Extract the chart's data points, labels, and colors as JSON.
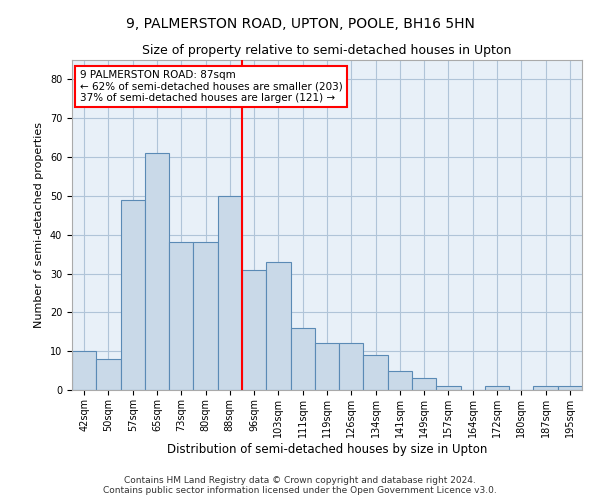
{
  "title1": "9, PALMERSTON ROAD, UPTON, POOLE, BH16 5HN",
  "title2": "Size of property relative to semi-detached houses in Upton",
  "xlabel": "Distribution of semi-detached houses by size in Upton",
  "ylabel": "Number of semi-detached properties",
  "categories": [
    "42sqm",
    "50sqm",
    "57sqm",
    "65sqm",
    "73sqm",
    "80sqm",
    "88sqm",
    "96sqm",
    "103sqm",
    "111sqm",
    "119sqm",
    "126sqm",
    "134sqm",
    "141sqm",
    "149sqm",
    "157sqm",
    "164sqm",
    "172sqm",
    "180sqm",
    "187sqm",
    "195sqm"
  ],
  "values": [
    10,
    8,
    49,
    61,
    38,
    38,
    50,
    31,
    33,
    16,
    12,
    12,
    9,
    5,
    3,
    1,
    0,
    1,
    0,
    1,
    1
  ],
  "bar_color": "#c9d9e8",
  "bar_edge_color": "#5a8ab5",
  "annotation_text": "9 PALMERSTON ROAD: 87sqm\n← 62% of semi-detached houses are smaller (203)\n37% of semi-detached houses are larger (121) →",
  "annotation_box_color": "white",
  "annotation_box_edge_color": "red",
  "vline_color": "red",
  "vline_x_index": 6,
  "ylim": [
    0,
    85
  ],
  "yticks": [
    0,
    10,
    20,
    30,
    40,
    50,
    60,
    70,
    80
  ],
  "grid_color": "#b0c4d8",
  "background_color": "#e8f0f8",
  "footer_line1": "Contains HM Land Registry data © Crown copyright and database right 2024.",
  "footer_line2": "Contains public sector information licensed under the Open Government Licence v3.0.",
  "title1_fontsize": 10,
  "title2_fontsize": 9,
  "xlabel_fontsize": 8.5,
  "ylabel_fontsize": 8,
  "tick_fontsize": 7,
  "annotation_fontsize": 7.5,
  "footer_fontsize": 6.5
}
